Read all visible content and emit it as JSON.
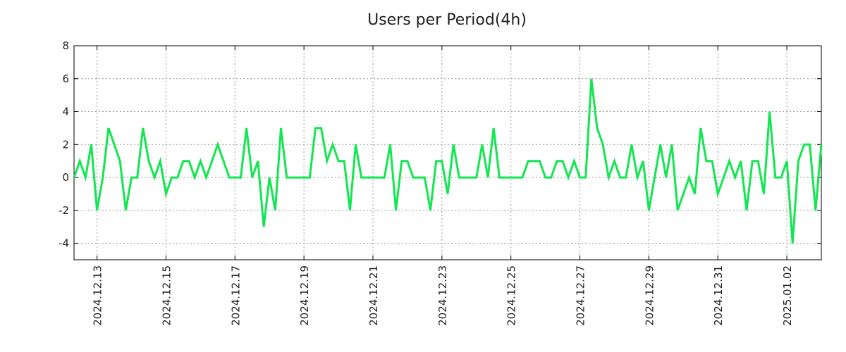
{
  "chart_data": {
    "type": "line",
    "title": "Users per Period(4h)",
    "xlabel": "",
    "ylabel": "",
    "ylim": [
      -5,
      8
    ],
    "yticks": [
      -4,
      -2,
      0,
      2,
      4,
      6,
      8
    ],
    "grid": true,
    "x_unit": "4h period index",
    "xticks": [
      {
        "index": 4,
        "label": "2024.12.13"
      },
      {
        "index": 16,
        "label": "2024.12.15"
      },
      {
        "index": 28,
        "label": "2024.12.17"
      },
      {
        "index": 40,
        "label": "2024.12.19"
      },
      {
        "index": 52,
        "label": "2024.12.21"
      },
      {
        "index": 64,
        "label": "2024.12.23"
      },
      {
        "index": 76,
        "label": "2024.12.25"
      },
      {
        "index": 88,
        "label": "2024.12.27"
      },
      {
        "index": 100,
        "label": "2024.12.29"
      },
      {
        "index": 112,
        "label": "2024.12.31"
      },
      {
        "index": 124,
        "label": "2025.01.02"
      }
    ],
    "series": [
      {
        "name": "Users",
        "color": "#12e650",
        "values": [
          0,
          1,
          0,
          2,
          -2,
          0,
          3,
          2,
          1,
          -2,
          0,
          0,
          3,
          1,
          0,
          1,
          -1,
          0,
          0,
          1,
          1,
          0,
          1,
          0,
          1,
          2,
          1,
          0,
          0,
          0,
          3,
          0,
          1,
          -3,
          0,
          -2,
          3,
          0,
          0,
          0,
          0,
          0,
          3,
          3,
          1,
          2,
          1,
          1,
          -2,
          2,
          0,
          0,
          0,
          0,
          0,
          2,
          -2,
          1,
          1,
          0,
          0,
          0,
          -2,
          1,
          1,
          -1,
          2,
          0,
          0,
          0,
          0,
          2,
          0,
          3,
          0,
          0,
          0,
          0,
          0,
          1,
          1,
          1,
          0,
          0,
          1,
          1,
          0,
          1,
          0,
          0,
          6,
          3,
          2,
          0,
          1,
          0,
          0,
          2,
          0,
          1,
          -2,
          0,
          2,
          0,
          2,
          -2,
          -1,
          0,
          -1,
          3,
          1,
          1,
          -1,
          0,
          1,
          0,
          1,
          -2,
          1,
          1,
          -1,
          4,
          0,
          0,
          1,
          -4,
          1,
          2,
          2,
          -2,
          2
        ]
      }
    ]
  }
}
